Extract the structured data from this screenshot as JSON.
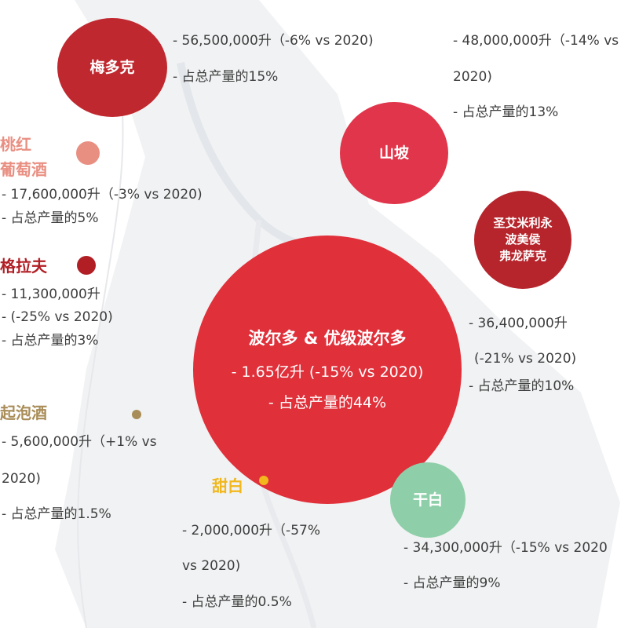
{
  "regions": {
    "medoc": {
      "name": "梅多克",
      "volume": "- 56,500,000升（-6% vs 2020)",
      "share": "- 占总产量的15%",
      "color": "#c0282f"
    },
    "cotes": {
      "name": "山坡",
      "volume_a": "- 48,000,000升（-14% vs",
      "volume_b": "2020)",
      "share": "- 占总产量的13%",
      "color": "#e0354a"
    },
    "rose": {
      "name_a": "桃红",
      "name_b": "葡萄酒",
      "volume": "- 17,600,000升（-3% vs 2020)",
      "share": "- 占总产量的5%",
      "color": "#e98f82"
    },
    "libournais": {
      "name_a": "圣艾米利永",
      "name_b": "波美侯",
      "name_c": "弗龙萨克",
      "volume": "- 36,400,000升",
      "change": "(-21% vs 2020)",
      "share": "- 占总产量的10%",
      "color": "#b6252c"
    },
    "graves": {
      "name": "格拉夫",
      "volume": "- 11,300,000升",
      "change": "- (-25% vs 2020)",
      "share": "- 占总产量的3%",
      "color": "#b11f25"
    },
    "bordeaux": {
      "name": "波尔多 & 优级波尔多",
      "volume": "- 1.65亿升 (-15% vs 2020)",
      "share": "- 占总产量的44%",
      "color": "#e0303a"
    },
    "cremant": {
      "name": "起泡酒",
      "volume_a": "- 5,600,000升（+1% vs",
      "volume_b": "2020)",
      "share": "- 占总产量的1.5%",
      "color": "#a98d58"
    },
    "sweet_white": {
      "name": "甜白",
      "volume_a": "- 2,000,000升（-57%",
      "volume_b": "vs 2020)",
      "share": "- 占总产量的0.5%",
      "color": "#f1b71c"
    },
    "dry_white": {
      "name": "干白",
      "volume": "- 34,300,000升（-15% vs 2020",
      "share": "- 占总产量的9%",
      "color": "#8ecfa9"
    }
  }
}
